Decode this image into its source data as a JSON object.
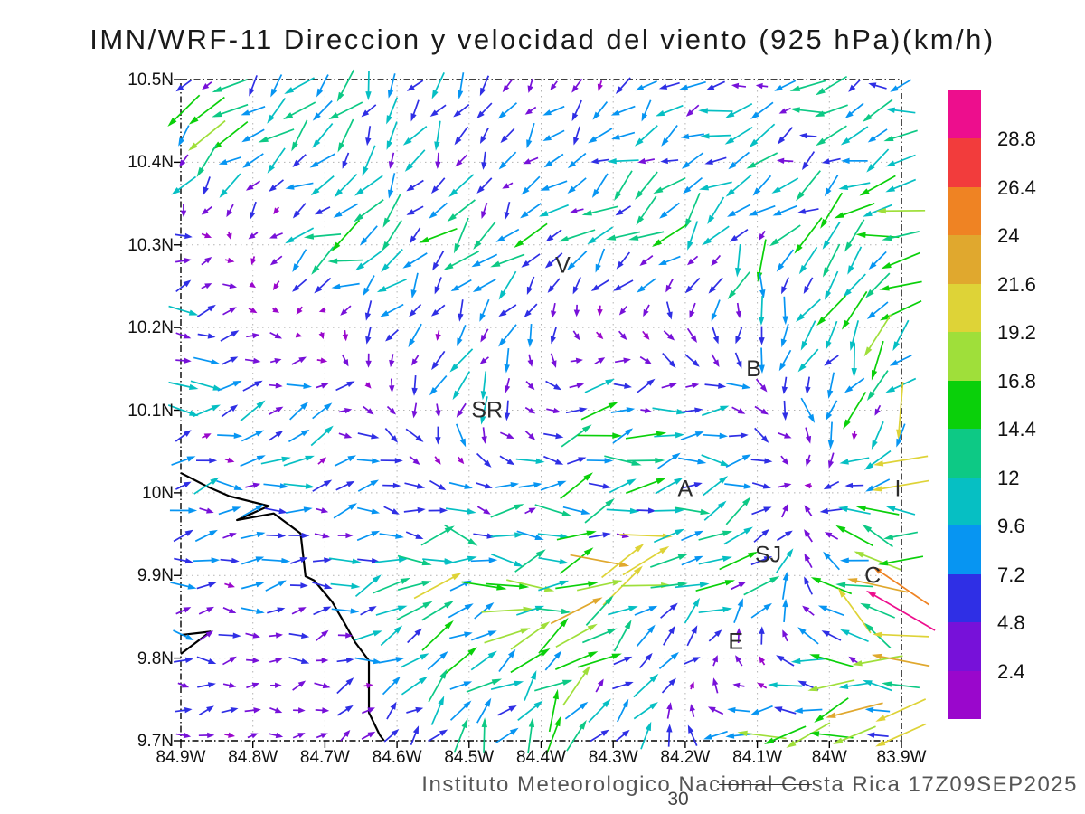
{
  "title": "IMN/WRF-11 Direccion y velocidad del viento (925 hPa)(km/h)",
  "footer": {
    "credit": "Instituto Meteorologico Nacional Costa Rica  17Z09SEP2025",
    "page_number": "30"
  },
  "axes": {
    "x_ticks": [
      "84.9W",
      "84.8W",
      "84.7W",
      "84.6W",
      "84.5W",
      "84.4W",
      "84.3W",
      "84.2W",
      "84.1W",
      "84W",
      "83.9W"
    ],
    "y_ticks": [
      "10.5N",
      "10.4N",
      "10.3N",
      "10.2N",
      "10.1N",
      "10N",
      "9.9N",
      "9.8N",
      "9.7N"
    ]
  },
  "colorbar": {
    "units": "km/h",
    "labels_top_to_bottom": [
      "28.8",
      "26.4",
      "24",
      "21.6",
      "19.2",
      "16.8",
      "14.4",
      "12",
      "9.6",
      "7.2",
      "4.8",
      "2.4"
    ]
  },
  "stations": [
    {
      "label": "V",
      "lon": -84.37,
      "lat": 10.275
    },
    {
      "label": "B",
      "lon": -84.105,
      "lat": 10.15
    },
    {
      "label": "SR",
      "lon": -84.475,
      "lat": 10.1
    },
    {
      "label": "A",
      "lon": -84.2,
      "lat": 10.005
    },
    {
      "label": "SJ",
      "lon": -84.085,
      "lat": 9.925
    },
    {
      "label": "C",
      "lon": -83.94,
      "lat": 9.9
    },
    {
      "label": "E",
      "lon": -84.13,
      "lat": 9.82
    },
    {
      "label": "I",
      "lon": -83.905,
      "lat": 10.005
    }
  ],
  "chart_data": {
    "type": "vector_field",
    "description": "Wind direction and speed arrows at 925 hPa on a 0.1-deg-gridline lat/lon map; arrow color and length encode speed in km/h per the color scale.",
    "lon_range": [
      -84.9,
      -83.9
    ],
    "lat_range": [
      9.7,
      10.5
    ],
    "gridline_step_deg": 0.1,
    "speed_thresholds_kmh": [
      2.4,
      4.8,
      7.2,
      9.6,
      12,
      14.4,
      16.8,
      19.2,
      21.6,
      24,
      26.4,
      28.8
    ],
    "speed_colors_ascending": [
      "#9a07cc",
      "#7711d9",
      "#2f2fe5",
      "#0795f2",
      "#06bfc3",
      "#0dc985",
      "#0ad00a",
      "#9fdf3a",
      "#ded337",
      "#e0a82e",
      "#ef8323",
      "#f23c3c",
      "#ed0e8d"
    ],
    "arrow_grid": {
      "cols": 32,
      "rows": 27
    },
    "wind_anchors": {
      "note": "Coarse u/v (km/h, east/north positive) read off the plot; fine grid is interpolated from these.",
      "lons": [
        -84.9,
        -84.7,
        -84.5,
        -84.3,
        -84.1,
        -83.9
      ],
      "lats": [
        9.7,
        9.9,
        10.1,
        10.3,
        10.4,
        10.5
      ],
      "u_kmh": [
        [
          3,
          3,
          4,
          6,
          -13,
          -15
        ],
        [
          6,
          6,
          16,
          15,
          9,
          -24
        ],
        [
          8,
          8,
          -3,
          11,
          5,
          -7
        ],
        [
          6,
          -9,
          -7,
          -8,
          -5,
          -13
        ],
        [
          -10,
          -6,
          -3,
          -6,
          -7,
          -8
        ],
        [
          -9,
          -5,
          -2,
          -3,
          -9,
          -9
        ]
      ],
      "v_kmh": [
        [
          0.3,
          0.5,
          9,
          11,
          -3,
          -4
        ],
        [
          0.5,
          1,
          2,
          4,
          7,
          9
        ],
        [
          1,
          2,
          -8,
          4,
          -3,
          -13
        ],
        [
          2,
          -5,
          -7,
          -6,
          -10,
          -5
        ],
        [
          -9,
          -6,
          -6,
          -4,
          -4,
          -3
        ],
        [
          -7,
          -9,
          -5,
          -4,
          -3,
          -2
        ]
      ]
    },
    "coastline": {
      "main": [
        [
          -84.9,
          10.024
        ],
        [
          -84.862,
          10.007
        ],
        [
          -84.833,
          9.996
        ],
        [
          -84.778,
          9.984
        ],
        [
          -84.822,
          9.967
        ],
        [
          -84.771,
          9.975
        ],
        [
          -84.734,
          9.951
        ],
        [
          -84.733,
          9.945
        ],
        [
          -84.727,
          9.899
        ],
        [
          -84.715,
          9.894
        ],
        [
          -84.69,
          9.868
        ],
        [
          -84.672,
          9.841
        ],
        [
          -84.658,
          9.819
        ],
        [
          -84.639,
          9.797
        ],
        [
          -84.639,
          9.734
        ],
        [
          -84.624,
          9.707
        ],
        [
          -84.618,
          9.7
        ]
      ],
      "islet": [
        [
          -84.9,
          9.828
        ],
        [
          -84.859,
          9.832
        ],
        [
          -84.9,
          9.805
        ]
      ]
    }
  }
}
